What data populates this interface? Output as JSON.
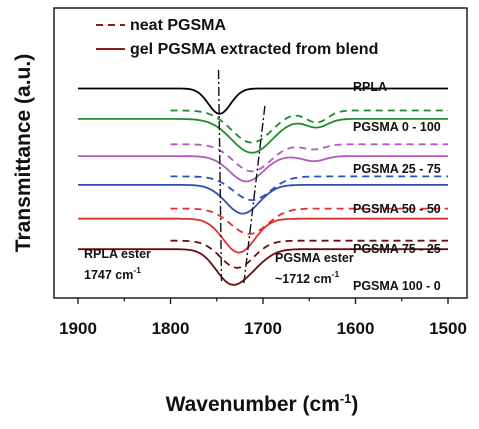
{
  "chart_data": {
    "type": "line",
    "xlabel": "Wavenumber (cm",
    "xlabel_sup": "-1",
    "xlabel_tail": ")",
    "ylabel": "Transmittance (a.u.)",
    "xlim": [
      1900,
      1500
    ],
    "x_reversed": true,
    "xticks": [
      1900,
      1800,
      1700,
      1600,
      1500
    ],
    "xtick_labels": [
      "1900",
      "1800",
      "1700",
      "1600",
      "1500"
    ],
    "y_ticks_labeled": false,
    "grid": false,
    "legend": {
      "placement": "top-left",
      "entries": [
        {
          "label": "neat PGSMA",
          "style": "dashed",
          "color": "#8b1a1a"
        },
        {
          "label": "gel PGSMA extracted from blend",
          "style": "solid",
          "color": "#8b1a1a"
        }
      ]
    },
    "series": [
      {
        "name": "RPLA",
        "color": "#000000",
        "style": "solid",
        "offset": 100,
        "x_range": [
          1900,
          1500
        ],
        "bands": [
          {
            "center": 1747,
            "width": 12,
            "depth": 15
          }
        ]
      },
      {
        "name": "PGSMA 0 - 100",
        "color": "#1e8c2a",
        "style": "solid",
        "offset": 82,
        "x_range": [
          1900,
          1500
        ],
        "bands": [
          {
            "center": 1712,
            "width": 22,
            "depth": 20
          },
          {
            "center": 1642,
            "width": 12,
            "depth": 5
          }
        ]
      },
      {
        "name": "PGSMA 0 - 100",
        "color": "#1e8c2a",
        "style": "dashed",
        "offset": 87,
        "x_range": [
          1800,
          1500
        ],
        "bands": [
          {
            "center": 1712,
            "width": 22,
            "depth": 19
          },
          {
            "center": 1642,
            "width": 12,
            "depth": 7
          }
        ]
      },
      {
        "name": "PGSMA 25 - 75",
        "color": "#b05cb8",
        "style": "solid",
        "offset": 60,
        "x_range": [
          1900,
          1500
        ],
        "bands": [
          {
            "center": 1718,
            "width": 18,
            "depth": 15
          },
          {
            "center": 1645,
            "width": 12,
            "depth": 3
          }
        ]
      },
      {
        "name": "PGSMA 25 - 75",
        "color": "#b05cb8",
        "style": "dashed",
        "offset": 67,
        "x_range": [
          1800,
          1500
        ],
        "bands": [
          {
            "center": 1712,
            "width": 20,
            "depth": 16
          },
          {
            "center": 1645,
            "width": 12,
            "depth": 3
          }
        ]
      },
      {
        "name": "PGSMA 50 - 50",
        "color": "#2e4fb3",
        "style": "solid",
        "offset": 43,
        "x_range": [
          1900,
          1500
        ],
        "bands": [
          {
            "center": 1722,
            "width": 18,
            "depth": 17
          }
        ]
      },
      {
        "name": "PGSMA 50 - 50",
        "color": "#2e4fb3",
        "style": "dashed",
        "offset": 48,
        "x_range": [
          1800,
          1500
        ],
        "bands": [
          {
            "center": 1712,
            "width": 20,
            "depth": 14
          }
        ]
      },
      {
        "name": "PGSMA 75 - 25",
        "color": "#e03030",
        "style": "solid",
        "offset": 23,
        "x_range": [
          1900,
          1500
        ],
        "bands": [
          {
            "center": 1726,
            "width": 17,
            "depth": 20
          }
        ]
      },
      {
        "name": "PGSMA 75 - 25",
        "color": "#e03030",
        "style": "dashed",
        "offset": 29,
        "x_range": [
          1800,
          1500
        ],
        "bands": [
          {
            "center": 1715,
            "width": 20,
            "depth": 15
          }
        ]
      },
      {
        "name": "PGSMA 100 - 0",
        "color": "#6b0d0d",
        "style": "solid",
        "offset": 5,
        "x_range": [
          1900,
          1500
        ],
        "bands": [
          {
            "center": 1736,
            "width": 16,
            "depth": 18
          },
          {
            "center": 1712,
            "width": 16,
            "depth": 8
          }
        ]
      },
      {
        "name": "PGSMA 100 - 0",
        "color": "#6b0d0d",
        "style": "dashed",
        "offset": 10,
        "x_range": [
          1800,
          1500
        ],
        "bands": [
          {
            "center": 1728,
            "width": 18,
            "depth": 16
          }
        ]
      }
    ],
    "trace_labels": [
      "RPLA",
      "PGSMA 0 - 100",
      "PGSMA 25 - 75",
      "PGSMA 50 - 50",
      "PGSMA 75 - 25",
      "PGSMA 100 - 0"
    ],
    "reference_lines": [
      {
        "label": "RPLA ester",
        "value": "1747 cm",
        "value_sup": "-1",
        "x": 1747
      },
      {
        "label": "PGSMA ester",
        "value": "~1712 cm",
        "value_sup": "-1",
        "x": 1712
      }
    ]
  }
}
